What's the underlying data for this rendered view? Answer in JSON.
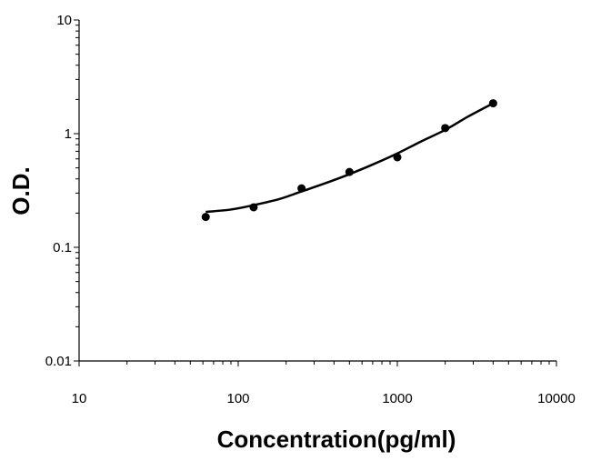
{
  "chart_data": {
    "type": "scatter",
    "title": "",
    "xlabel": "Concentration(pg/ml)",
    "ylabel": "O.D.",
    "x_scale": "log",
    "y_scale": "log",
    "xlim": [
      10,
      10000
    ],
    "ylim": [
      0.01,
      10
    ],
    "x_ticks": [
      "10",
      "100",
      "1000",
      "10000"
    ],
    "y_ticks": [
      "0.01",
      "0.1",
      "1",
      "10"
    ],
    "grid": false,
    "legend": "none",
    "series": [
      {
        "points": [
          {
            "x": 62.5,
            "y": 0.185
          },
          {
            "x": 125,
            "y": 0.225
          },
          {
            "x": 250,
            "y": 0.33
          },
          {
            "x": 500,
            "y": 0.46
          },
          {
            "x": 1000,
            "y": 0.62
          },
          {
            "x": 2000,
            "y": 1.12
          },
          {
            "x": 4000,
            "y": 1.85
          }
        ],
        "fit_curve": [
          {
            "x": 62.5,
            "y": 0.205
          },
          {
            "x": 90,
            "y": 0.215
          },
          {
            "x": 125,
            "y": 0.235
          },
          {
            "x": 180,
            "y": 0.265
          },
          {
            "x": 250,
            "y": 0.31
          },
          {
            "x": 350,
            "y": 0.365
          },
          {
            "x": 500,
            "y": 0.44
          },
          {
            "x": 700,
            "y": 0.535
          },
          {
            "x": 1000,
            "y": 0.67
          },
          {
            "x": 1400,
            "y": 0.85
          },
          {
            "x": 2000,
            "y": 1.08
          },
          {
            "x": 2800,
            "y": 1.42
          },
          {
            "x": 4000,
            "y": 1.85
          }
        ]
      }
    ],
    "colors": {
      "marker": "#000000",
      "line": "#000000",
      "axis": "#000000"
    }
  }
}
